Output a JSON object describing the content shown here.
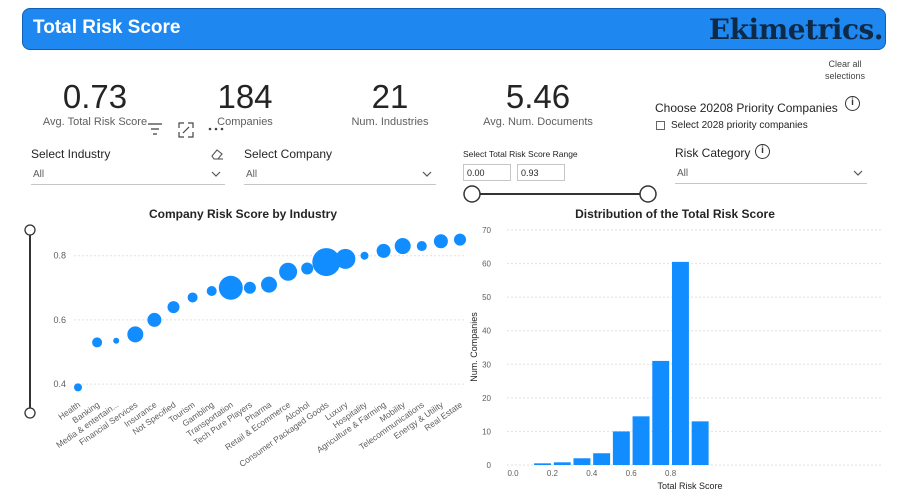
{
  "header": {
    "title": "Total Risk Score",
    "logo_text": "Ekimetrics."
  },
  "clear_all": {
    "line1": "Clear all",
    "line2": "selections"
  },
  "kpis": [
    {
      "value": "0.73",
      "label": "Avg. Total Risk Score"
    },
    {
      "value": "184",
      "label": "Companies"
    },
    {
      "value": "21",
      "label": "Num. Industries"
    },
    {
      "value": "5.46",
      "label": "Avg. Num. Documents"
    }
  ],
  "priority": {
    "title": "Choose 20208 Priority Companies",
    "checkbox_label": "Select 2028 priority companies",
    "checked": false
  },
  "slicers": {
    "industry": {
      "title": "Select Industry",
      "value": "All"
    },
    "company": {
      "title": "Select Company",
      "value": "All"
    },
    "range": {
      "title": "Select Total Risk Score Range",
      "min": "0.00",
      "max": "0.93"
    },
    "risk_category": {
      "title": "Risk Category",
      "value": "All"
    }
  },
  "colors": {
    "accent": "#1e88f0",
    "bar": "#118dff",
    "logo": "#0e2a47"
  },
  "icons": [
    "filter-icon",
    "focus-mode-icon",
    "more-options-icon",
    "eraser-icon",
    "info-icon",
    "chevron-down-icon"
  ],
  "chart_data": [
    {
      "type": "scatter",
      "title": "Company Risk Score by Industry",
      "categories": [
        "Health",
        "Banking",
        "Media & entertain...",
        "Financial Services",
        "Insurance",
        "Not Specified",
        "Tourism",
        "Gambling",
        "Transportation",
        "Tech Pure Players",
        "Pharma",
        "Retail & Ecommerce",
        "Alcohol",
        "Consumer Packaged Goods",
        "Luxury",
        "Hospitality",
        "Agriculture & Farming",
        "Mobility",
        "Telecommunications",
        "Energy & Utility",
        "Real Estate"
      ],
      "values": [
        0.39,
        0.53,
        0.535,
        0.555,
        0.6,
        0.64,
        0.67,
        0.69,
        0.7,
        0.7,
        0.71,
        0.75,
        0.76,
        0.78,
        0.79,
        0.8,
        0.815,
        0.83,
        0.83,
        0.845,
        0.85
      ],
      "sizes": [
        4,
        5,
        3,
        8,
        7,
        6,
        5,
        5,
        12,
        6,
        8,
        9,
        6,
        14,
        10,
        4,
        7,
        8,
        5,
        7,
        6
      ],
      "yticks": [
        0.4,
        0.6,
        0.8
      ],
      "ylim": [
        0.36,
        0.88
      ],
      "grid": true
    },
    {
      "type": "bar",
      "title": "Distribution of the Total Risk Score",
      "xlabel": "Total Risk Score",
      "ylabel": "Num. Companies",
      "bins": [
        0.05,
        0.15,
        0.25,
        0.35,
        0.45,
        0.55,
        0.65,
        0.75,
        0.85,
        0.95
      ],
      "values": [
        0,
        0.5,
        0.8,
        2,
        3.5,
        10,
        14.5,
        31,
        60.5,
        13
      ],
      "xticks": [
        "0.0",
        "0.2",
        "0.4",
        "0.6",
        "0.8"
      ],
      "yticks": [
        0,
        10,
        20,
        30,
        40,
        50,
        60,
        70
      ],
      "ylim": [
        0,
        70
      ],
      "grid": true
    }
  ]
}
